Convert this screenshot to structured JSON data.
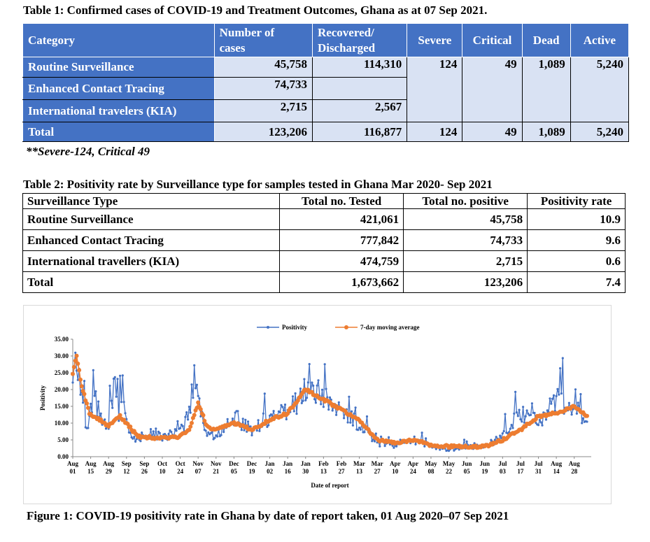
{
  "table1": {
    "title": "Table 1: Confirmed cases of COVID-19 and Treatment Outcomes, Ghana as at 07 Sep 2021.",
    "headers": [
      "Category",
      "Number of cases",
      "Recovered/ Discharged",
      "Severe",
      "Critical",
      "Dead",
      "Active"
    ],
    "header_number_line1": "Number of",
    "header_number_line2": "cases",
    "header_recovered_line1": "Recovered/",
    "header_recovered_line2": "Discharged",
    "rows": [
      {
        "category": "Routine Surveillance",
        "cases": "45,758",
        "recovered": "114,310",
        "severe": "124",
        "critical": "49",
        "dead": "1,089",
        "active": "5,240"
      },
      {
        "category": "Enhanced Contact Tracing",
        "cases": "74,733"
      },
      {
        "category": "International travelers (KIA)",
        "cases": "2,715",
        "recovered": "2,567"
      }
    ],
    "total": {
      "category": "Total",
      "cases": "123,206",
      "recovered": "116,877",
      "severe": "124",
      "critical": "49",
      "dead": "1,089",
      "active": "5,240"
    },
    "note": "**Severe-124, Critical 49",
    "colors": {
      "header": "#4472c4",
      "cell": "#d9e2f3"
    }
  },
  "table2": {
    "title": "Table 2: Positivity rate by Surveillance type for samples tested in Ghana Mar 2020- Sep 2021",
    "headers": [
      "Surveillance Type",
      "Total no. Tested",
      "Total no. positive",
      "Positivity rate"
    ],
    "rows": [
      {
        "type": "Routine Surveillance",
        "tested": "421,061",
        "positive": "45,758",
        "rate": "10.9"
      },
      {
        "type": "Enhanced Contact Tracing",
        "tested": "777,842",
        "positive": "74,733",
        "rate": "9.6"
      },
      {
        "type": "International travellers (KIA)",
        "tested": "474,759",
        "positive": "2,715",
        "rate": "0.6"
      },
      {
        "type": "Total",
        "tested": "1,673,662",
        "positive": "123,206",
        "rate": "7.4"
      }
    ]
  },
  "figure": {
    "caption": "Figure 1: COVID-19 positivity rate in Ghana by date of report taken, 01 Aug 2020–07 Sep 2021"
  },
  "chart_data": {
    "type": "line",
    "title": "",
    "xlabel": "Date of report",
    "ylabel": "Positivity",
    "ylim": [
      0,
      35
    ],
    "yticks": [
      "0.00",
      "5.00",
      "10.00",
      "15.00",
      "20.00",
      "25.00",
      "30.00",
      "35.00"
    ],
    "xtick_months": [
      "Aug",
      "Aug",
      "Aug",
      "Sep",
      "Sep",
      "Oct",
      "Oct",
      "Nov",
      "Nov",
      "Dec",
      "Dec",
      "Jan",
      "Jan",
      "Jan",
      "Feb",
      "Feb",
      "Mar",
      "Mar",
      "Apr",
      "Apr",
      "May",
      "May",
      "Jun",
      "Jun",
      "Jul",
      "Jul",
      "Jul",
      "Aug",
      "Aug"
    ],
    "xtick_days": [
      "01",
      "15",
      "29",
      "12",
      "26",
      "10",
      "24",
      "07",
      "21",
      "05",
      "19",
      "02",
      "16",
      "30",
      "13",
      "27",
      "13",
      "27",
      "10",
      "24",
      "08",
      "22",
      "05",
      "19",
      "03",
      "17",
      "31",
      "14",
      "28"
    ],
    "x_start": "2020-08-01",
    "x_end": "2021-09-07",
    "legend_position": "top",
    "grid": false,
    "colors": {
      "positivity": "#4472c4",
      "moving_average": "#ed7d31"
    },
    "series": [
      {
        "name": "Positivity",
        "anchors": [
          {
            "x": "2020-08-01",
            "y": 22
          },
          {
            "x": "2020-08-03",
            "y": 32
          },
          {
            "x": "2020-08-06",
            "y": 26
          },
          {
            "x": "2020-08-09",
            "y": 15
          },
          {
            "x": "2020-08-12",
            "y": 7
          },
          {
            "x": "2020-08-15",
            "y": 13
          },
          {
            "x": "2020-08-19",
            "y": 16
          },
          {
            "x": "2020-08-24",
            "y": 10
          },
          {
            "x": "2020-08-29",
            "y": 8
          },
          {
            "x": "2020-09-02",
            "y": 22
          },
          {
            "x": "2020-09-06",
            "y": 12
          },
          {
            "x": "2020-09-09",
            "y": 21
          },
          {
            "x": "2020-09-14",
            "y": 8
          },
          {
            "x": "2020-09-20",
            "y": 5
          },
          {
            "x": "2020-09-28",
            "y": 7
          },
          {
            "x": "2020-10-10",
            "y": 6
          },
          {
            "x": "2020-10-24",
            "y": 7
          },
          {
            "x": "2020-10-31",
            "y": 13
          },
          {
            "x": "2020-11-05",
            "y": 26
          },
          {
            "x": "2020-11-09",
            "y": 13
          },
          {
            "x": "2020-11-14",
            "y": 7
          },
          {
            "x": "2020-11-21",
            "y": 6
          },
          {
            "x": "2020-12-05",
            "y": 12
          },
          {
            "x": "2020-12-19",
            "y": 8
          },
          {
            "x": "2021-01-02",
            "y": 12
          },
          {
            "x": "2021-01-16",
            "y": 13
          },
          {
            "x": "2021-01-30",
            "y": 20
          },
          {
            "x": "2021-02-13",
            "y": 18
          },
          {
            "x": "2021-02-27",
            "y": 13
          },
          {
            "x": "2021-03-13",
            "y": 10
          },
          {
            "x": "2021-03-27",
            "y": 4
          },
          {
            "x": "2021-04-10",
            "y": 3
          },
          {
            "x": "2021-04-24",
            "y": 5
          },
          {
            "x": "2021-05-08",
            "y": 3
          },
          {
            "x": "2021-05-22",
            "y": 2
          },
          {
            "x": "2021-06-05",
            "y": 3
          },
          {
            "x": "2021-06-19",
            "y": 3
          },
          {
            "x": "2021-07-03",
            "y": 6
          },
          {
            "x": "2021-07-17",
            "y": 13
          },
          {
            "x": "2021-07-31",
            "y": 10
          },
          {
            "x": "2021-08-14",
            "y": 18
          },
          {
            "x": "2021-08-28",
            "y": 14
          },
          {
            "x": "2021-09-07",
            "y": 12
          }
        ]
      },
      {
        "name": "7-day moving average",
        "anchors": [
          {
            "x": "2020-08-01",
            "y": 25
          },
          {
            "x": "2020-08-04",
            "y": 30
          },
          {
            "x": "2020-08-08",
            "y": 21
          },
          {
            "x": "2020-08-14",
            "y": 13
          },
          {
            "x": "2020-08-22",
            "y": 11
          },
          {
            "x": "2020-08-29",
            "y": 9
          },
          {
            "x": "2020-09-07",
            "y": 12
          },
          {
            "x": "2020-09-14",
            "y": 9
          },
          {
            "x": "2020-09-21",
            "y": 6
          },
          {
            "x": "2020-10-10",
            "y": 5.5
          },
          {
            "x": "2020-10-24",
            "y": 6
          },
          {
            "x": "2020-10-31",
            "y": 8
          },
          {
            "x": "2020-11-07",
            "y": 16
          },
          {
            "x": "2020-11-14",
            "y": 9
          },
          {
            "x": "2020-11-21",
            "y": 8
          },
          {
            "x": "2020-12-05",
            "y": 10
          },
          {
            "x": "2020-12-19",
            "y": 8
          },
          {
            "x": "2021-01-02",
            "y": 11
          },
          {
            "x": "2021-01-16",
            "y": 13
          },
          {
            "x": "2021-01-30",
            "y": 20
          },
          {
            "x": "2021-02-13",
            "y": 17
          },
          {
            "x": "2021-02-27",
            "y": 14
          },
          {
            "x": "2021-03-13",
            "y": 11
          },
          {
            "x": "2021-03-27",
            "y": 5
          },
          {
            "x": "2021-04-10",
            "y": 4
          },
          {
            "x": "2021-04-24",
            "y": 5
          },
          {
            "x": "2021-05-08",
            "y": 3.5
          },
          {
            "x": "2021-05-22",
            "y": 3
          },
          {
            "x": "2021-06-05",
            "y": 3
          },
          {
            "x": "2021-06-19",
            "y": 3
          },
          {
            "x": "2021-07-03",
            "y": 5
          },
          {
            "x": "2021-07-17",
            "y": 8
          },
          {
            "x": "2021-07-31",
            "y": 12
          },
          {
            "x": "2021-08-14",
            "y": 13
          },
          {
            "x": "2021-08-28",
            "y": 15
          },
          {
            "x": "2021-09-07",
            "y": 12
          }
        ]
      }
    ]
  }
}
